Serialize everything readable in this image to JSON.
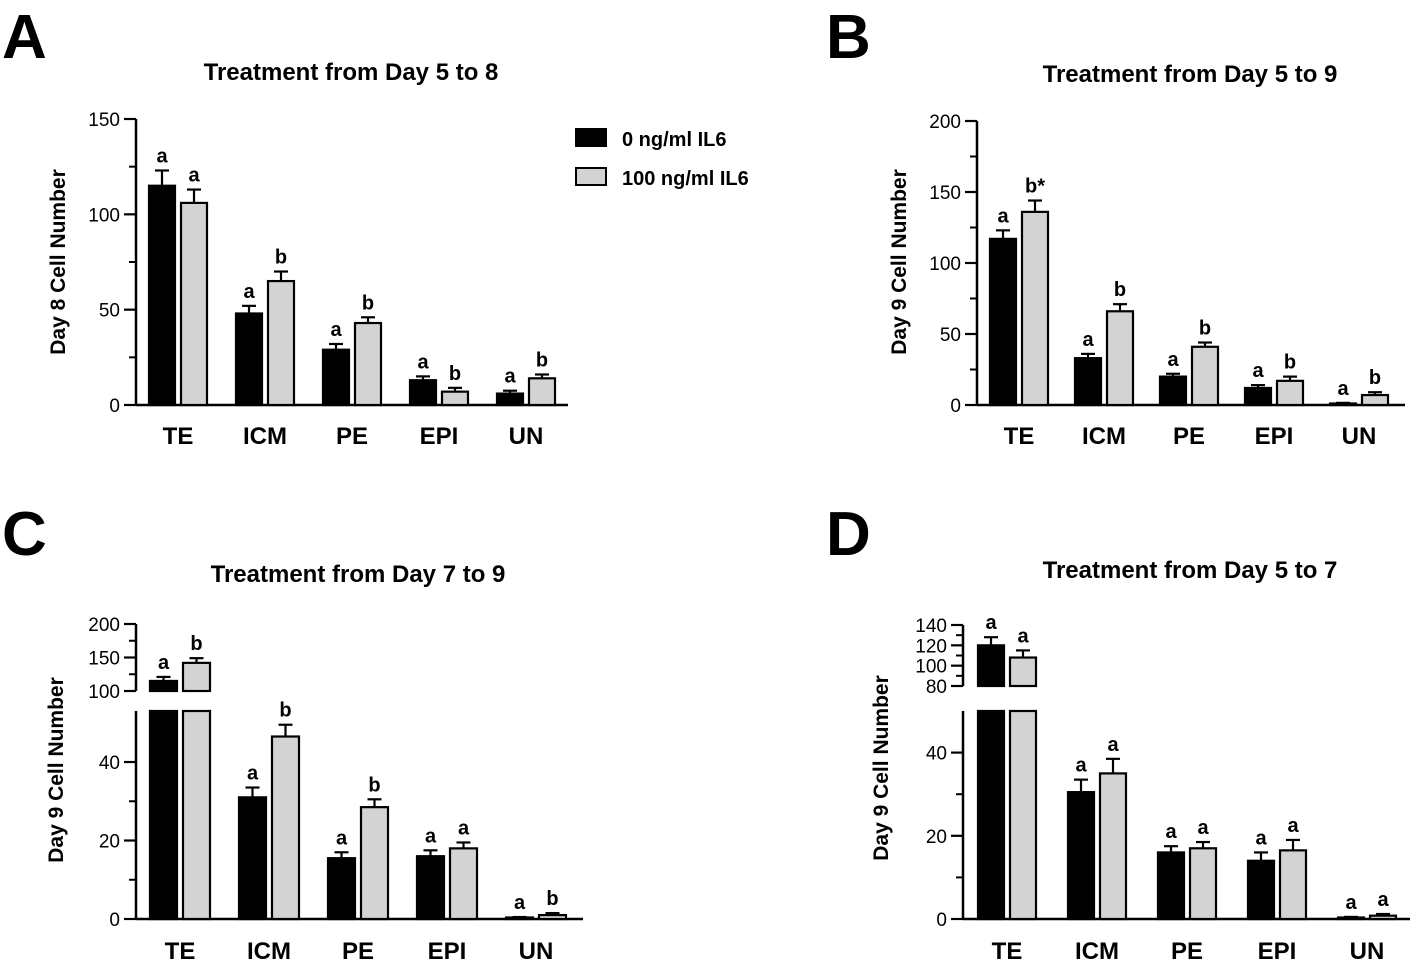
{
  "colors": {
    "control": "#000000",
    "treated": "#d3d3d3"
  },
  "legend": {
    "items": [
      {
        "label": "0 ng/ml IL6"
      },
      {
        "label": "100 ng/ml IL6"
      }
    ]
  },
  "chart_data": [
    {
      "panel": "A",
      "type": "bar",
      "title": "Treatment from Day 5 to 8",
      "xlabel": "",
      "ylabel": "Day 8 Cell Number",
      "categories": [
        "TE",
        "ICM",
        "PE",
        "EPI",
        "UN"
      ],
      "ylim": [
        0,
        150
      ],
      "yticks": [
        "0",
        "50",
        "100",
        "150"
      ],
      "series": [
        {
          "name": "0 ng/ml IL6",
          "values": [
            115,
            48,
            29,
            13,
            6
          ],
          "errors": [
            8,
            4,
            3,
            2,
            1.5
          ],
          "labels": [
            "a",
            "a",
            "a",
            "a",
            "a"
          ]
        },
        {
          "name": "100 ng/ml IL6",
          "values": [
            106,
            65,
            43,
            7,
            14
          ],
          "errors": [
            7,
            5,
            3,
            2,
            2
          ],
          "labels": [
            "a",
            "b",
            "b",
            "b",
            "b"
          ]
        }
      ]
    },
    {
      "panel": "B",
      "type": "bar",
      "title": "Treatment from Day 5 to 9",
      "xlabel": "",
      "ylabel": "Day 9 Cell Number",
      "categories": [
        "TE",
        "ICM",
        "PE",
        "EPI",
        "UN"
      ],
      "ylim": [
        0,
        200
      ],
      "yticks": [
        "0",
        "50",
        "100",
        "150",
        "200"
      ],
      "series": [
        {
          "name": "0 ng/ml IL6",
          "values": [
            117,
            33,
            20,
            12,
            1
          ],
          "errors": [
            6,
            3,
            2,
            2,
            0.5
          ],
          "labels": [
            "a",
            "a",
            "a",
            "a",
            "a"
          ]
        },
        {
          "name": "100 ng/ml IL6",
          "values": [
            136,
            66,
            41,
            17,
            7
          ],
          "errors": [
            8,
            5,
            3,
            3,
            2
          ],
          "labels": [
            "b*",
            "b",
            "b",
            "b",
            "b"
          ]
        }
      ]
    },
    {
      "panel": "C",
      "type": "bar",
      "title": "Treatment from Day 7 to 9",
      "xlabel": "",
      "ylabel": "Day 9 Cell Number",
      "categories": [
        "TE",
        "ICM",
        "PE",
        "EPI",
        "UN"
      ],
      "ylim_lower": [
        0,
        53
      ],
      "ylim_upper": [
        100,
        200
      ],
      "yticks_lower": [
        "0",
        "20",
        "40"
      ],
      "yticks_upper": [
        "100",
        "150",
        "200"
      ],
      "series": [
        {
          "name": "0 ng/ml IL6",
          "values": [
            115,
            31,
            15.5,
            16,
            0.3
          ],
          "errors": [
            6,
            2.5,
            1.5,
            1.5,
            0.2
          ],
          "labels": [
            "a",
            "a",
            "a",
            "a",
            "a"
          ]
        },
        {
          "name": "100 ng/ml IL6",
          "values": [
            142,
            46.5,
            28.5,
            18,
            1
          ],
          "errors": [
            7,
            3,
            2,
            1.5,
            0.5
          ],
          "labels": [
            "b",
            "b",
            "b",
            "a",
            "b"
          ]
        }
      ]
    },
    {
      "panel": "D",
      "type": "bar",
      "title": "Treatment from Day 5 to 7",
      "xlabel": "",
      "ylabel": "Day 9 Cell Number",
      "categories": [
        "TE",
        "ICM",
        "PE",
        "EPI",
        "UN"
      ],
      "ylim_lower": [
        0,
        50
      ],
      "ylim_upper": [
        80,
        140
      ],
      "yticks_lower": [
        "0",
        "20",
        "40"
      ],
      "yticks_upper": [
        "80",
        "100",
        "120",
        "140"
      ],
      "series": [
        {
          "name": "0 ng/ml IL6",
          "values": [
            120,
            30.5,
            16,
            14,
            0.3
          ],
          "errors": [
            8,
            3,
            1.5,
            2,
            0.2
          ],
          "labels": [
            "a",
            "a",
            "a",
            "a",
            "a"
          ]
        },
        {
          "name": "100 ng/ml IL6",
          "values": [
            108,
            35,
            17,
            16.5,
            0.8
          ],
          "errors": [
            7,
            3.5,
            1.5,
            2.5,
            0.4
          ],
          "labels": [
            "a",
            "a",
            "a",
            "a",
            "a"
          ]
        }
      ]
    }
  ]
}
